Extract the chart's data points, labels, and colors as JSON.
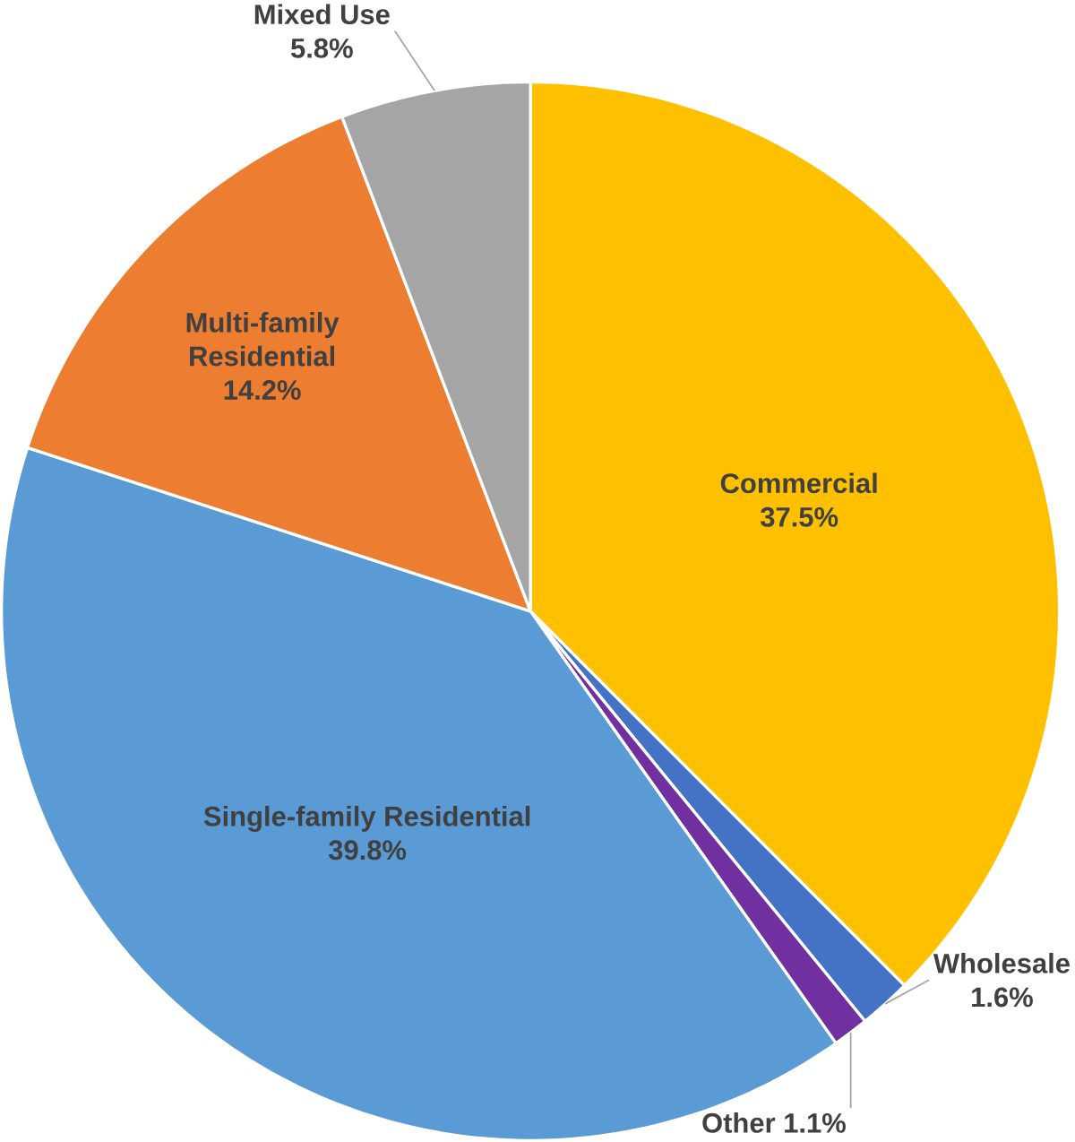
{
  "chart_data": {
    "type": "pie",
    "categories": [
      "Commercial",
      "Wholesale",
      "Other",
      "Single-family Residential",
      "Multi-family Residential",
      "Mixed Use"
    ],
    "values": [
      37.5,
      1.6,
      1.1,
      39.8,
      14.2,
      5.8
    ],
    "colors": [
      "#ffc000",
      "#4472c4",
      "#7030a0",
      "#5b9bd5",
      "#ed7d31",
      "#a5a5a5"
    ],
    "value_labels": [
      "37.5%",
      "1.6%",
      "1.1%",
      "39.8%",
      "14.2%",
      "5.8%"
    ]
  }
}
